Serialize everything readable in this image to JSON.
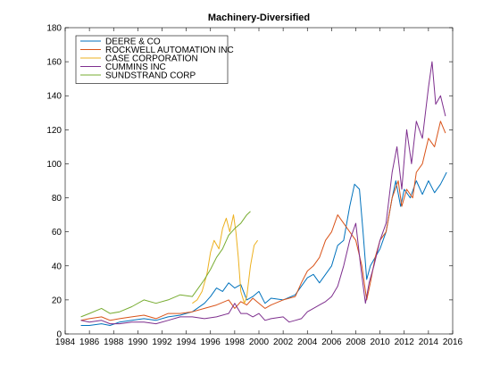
{
  "chart_data": {
    "type": "line",
    "title": "Machinery-Diversified",
    "xlabel": "",
    "ylabel": "",
    "xlim": [
      1984,
      2016
    ],
    "ylim": [
      0,
      180
    ],
    "x_ticks": [
      1984,
      1986,
      1988,
      1990,
      1992,
      1994,
      1996,
      1998,
      2000,
      2002,
      2004,
      2006,
      2008,
      2010,
      2012,
      2014,
      2016
    ],
    "y_ticks": [
      0,
      20,
      40,
      60,
      80,
      100,
      120,
      140,
      160,
      180
    ],
    "grid": false,
    "legend_position": "top-left",
    "series": [
      {
        "name": "DEERE & CO",
        "color": "#0072BD",
        "x": [
          1985.3,
          1986.0,
          1987.0,
          1987.7,
          1988.5,
          1989.5,
          1990.5,
          1991.5,
          1992.5,
          1993.5,
          1994.5,
          1995.5,
          1996.0,
          1996.5,
          1997.0,
          1997.5,
          1998.0,
          1998.5,
          1999.0,
          1999.5,
          2000.0,
          2000.5,
          2001.0,
          2002.0,
          2003.0,
          2003.5,
          2004.0,
          2004.5,
          2005.0,
          2005.5,
          2006.0,
          2006.5,
          2007.0,
          2007.5,
          2007.9,
          2008.3,
          2008.6,
          2008.9,
          2009.2,
          2009.6,
          2010.0,
          2010.5,
          2011.0,
          2011.3,
          2011.7,
          2012.0,
          2012.5,
          2013.0,
          2013.5,
          2014.0,
          2014.5,
          2015.0,
          2015.5
        ],
        "y": [
          5,
          5,
          6,
          5,
          7,
          8,
          9,
          8,
          10,
          11,
          13,
          18,
          22,
          27,
          25,
          30,
          27,
          29,
          20,
          22,
          25,
          18,
          21,
          20,
          23,
          28,
          33,
          35,
          30,
          35,
          40,
          52,
          55,
          75,
          88,
          85,
          60,
          32,
          40,
          45,
          50,
          60,
          80,
          90,
          75,
          85,
          80,
          90,
          82,
          90,
          83,
          88,
          95
        ]
      },
      {
        "name": "ROCKWELL AUTOMATION INC",
        "color": "#D95319",
        "x": [
          1985.3,
          1986.0,
          1987.0,
          1987.7,
          1988.5,
          1989.5,
          1990.5,
          1991.5,
          1992.5,
          1993.5,
          1994.5,
          1995.5,
          1996.5,
          1997.5,
          1998.0,
          1998.5,
          1999.0,
          1999.5,
          2000.0,
          2000.5,
          2001.0,
          2002.0,
          2003.0,
          2003.5,
          2004.0,
          2004.5,
          2005.0,
          2005.5,
          2006.0,
          2006.5,
          2007.0,
          2007.5,
          2008.0,
          2008.5,
          2008.9,
          2009.2,
          2009.6,
          2010.0,
          2010.5,
          2011.0,
          2011.5,
          2011.8,
          2012.2,
          2012.7,
          2013.0,
          2013.5,
          2014.0,
          2014.5,
          2015.0,
          2015.4
        ],
        "y": [
          8,
          9,
          10,
          8,
          9,
          10,
          11,
          9,
          12,
          12,
          13,
          15,
          17,
          20,
          15,
          19,
          17,
          21,
          18,
          15,
          17,
          20,
          22,
          30,
          37,
          40,
          45,
          55,
          60,
          70,
          65,
          60,
          55,
          40,
          20,
          30,
          45,
          55,
          60,
          80,
          90,
          75,
          85,
          80,
          95,
          100,
          115,
          110,
          125,
          118
        ]
      },
      {
        "name": "CASE CORPORATION",
        "color": "#EDB120",
        "x": [
          1994.5,
          1994.9,
          1995.3,
          1995.7,
          1996.0,
          1996.3,
          1996.7,
          1997.0,
          1997.3,
          1997.6,
          1997.9,
          1998.1,
          1998.3,
          1998.5,
          1998.8,
          1999.0,
          1999.3,
          1999.6,
          1999.9
        ],
        "y": [
          18,
          20,
          25,
          35,
          48,
          55,
          50,
          62,
          68,
          60,
          70,
          60,
          45,
          25,
          18,
          22,
          40,
          52,
          55
        ]
      },
      {
        "name": "CUMMINS INC",
        "color": "#7E2F8E",
        "x": [
          1985.3,
          1986.0,
          1987.0,
          1987.7,
          1988.5,
          1989.5,
          1990.5,
          1991.5,
          1992.5,
          1993.5,
          1994.5,
          1995.5,
          1996.5,
          1997.5,
          1998.0,
          1998.5,
          1999.0,
          1999.5,
          2000.0,
          2000.5,
          2001.0,
          2002.0,
          2002.5,
          2003.0,
          2003.5,
          2004.0,
          2004.5,
          2005.0,
          2005.5,
          2006.0,
          2006.5,
          2007.0,
          2007.5,
          2008.0,
          2008.4,
          2008.8,
          2009.1,
          2009.5,
          2010.0,
          2010.5,
          2011.0,
          2011.4,
          2011.8,
          2012.2,
          2012.6,
          2013.0,
          2013.5,
          2014.0,
          2014.3,
          2014.6,
          2015.0,
          2015.4
        ],
        "y": [
          8,
          7,
          8,
          6,
          6,
          7,
          7,
          6,
          8,
          10,
          10,
          9,
          10,
          12,
          18,
          12,
          12,
          10,
          12,
          8,
          9,
          10,
          7,
          8,
          9,
          13,
          15,
          17,
          19,
          22,
          28,
          40,
          55,
          65,
          40,
          18,
          30,
          40,
          55,
          65,
          95,
          110,
          85,
          120,
          100,
          125,
          115,
          145,
          160,
          135,
          140,
          128
        ]
      },
      {
        "name": "SUNDSTRAND CORP",
        "color": "#77AC30",
        "x": [
          1985.3,
          1986.0,
          1987.0,
          1987.7,
          1988.5,
          1989.5,
          1990.5,
          1991.5,
          1992.5,
          1993.5,
          1994.5,
          1995.0,
          1995.5,
          1996.0,
          1996.5,
          1997.0,
          1997.5,
          1998.0,
          1998.5,
          1999.0,
          1999.3
        ],
        "y": [
          10,
          12,
          15,
          12,
          13,
          16,
          20,
          18,
          20,
          23,
          22,
          27,
          32,
          38,
          45,
          50,
          58,
          62,
          65,
          70,
          72
        ]
      }
    ]
  }
}
